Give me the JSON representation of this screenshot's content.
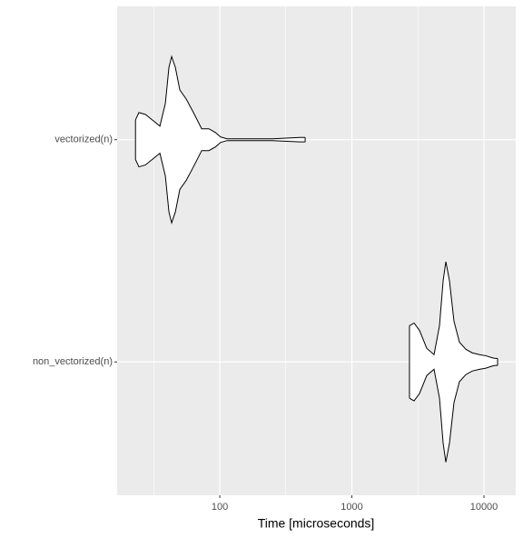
{
  "chart_data": {
    "type": "violin",
    "orientation": "horizontal",
    "x_label": "Time [microseconds]",
    "x_log_scale": true,
    "xlim": [
      16.7,
      17400
    ],
    "xticks": [
      100,
      1000,
      10000
    ],
    "xminorticks": [
      31.6,
      316,
      3162
    ],
    "grid": true,
    "categories": [
      "non_vectorized(n)",
      "vectorized(n)"
    ],
    "series": [
      {
        "x": [
          2729,
          2956,
          3252,
          3690,
          4188,
          4605,
          4909,
          5145,
          5480,
          5930,
          6520,
          7290,
          8143,
          9245,
          10330,
          11360,
          12090,
          12680
        ],
        "half_width": [
          0.163,
          0.175,
          0.142,
          0.061,
          0.033,
          0.163,
          0.366,
          0.451,
          0.366,
          0.183,
          0.089,
          0.057,
          0.041,
          0.033,
          0.028,
          0.02,
          0.016,
          0.016
        ]
      },
      {
        "x": [
          23.0,
          24.4,
          27.3,
          32.0,
          35.2,
          38.7,
          41.2,
          43.2,
          46.1,
          49.8,
          55.7,
          63.2,
          72.9,
          82.7,
          92.4,
          101.6,
          113.5,
          250,
          403,
          443
        ],
        "half_width": [
          0.089,
          0.122,
          0.114,
          0.081,
          0.061,
          0.163,
          0.325,
          0.374,
          0.325,
          0.224,
          0.183,
          0.122,
          0.049,
          0.049,
          0.033,
          0.012,
          0.004,
          0.004,
          0.01,
          0.01
        ]
      }
    ],
    "fill": "#ffffff",
    "outline": "#000000"
  }
}
